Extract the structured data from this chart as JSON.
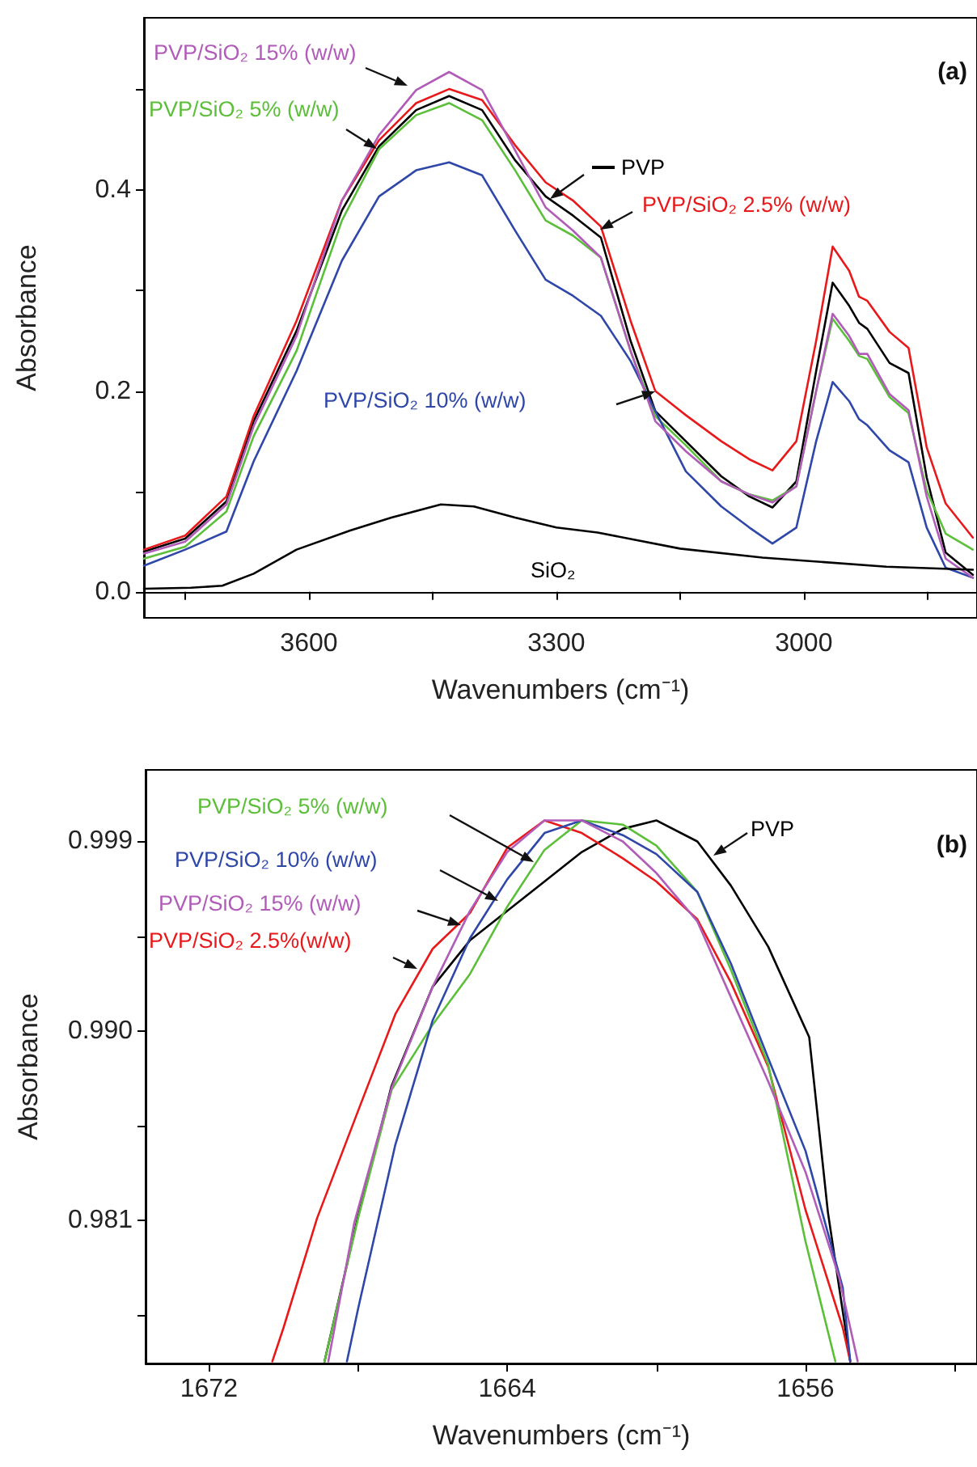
{
  "chart_data": [
    {
      "type": "line",
      "xlabel": "Wavenumbers (cm⁻¹)",
      "ylabel": "Absorbance",
      "annotations": [
        "(a)"
      ],
      "xlim": [
        3800,
        2790
      ],
      "ylim": [
        -0.026,
        0.572
      ],
      "xticks": [
        {
          "value": 3750,
          "label": null
        },
        3600,
        {
          "value": 3450,
          "label": null
        },
        3300,
        {
          "value": 3150,
          "label": null
        },
        3000,
        {
          "value": 2850,
          "label": null
        }
      ],
      "yticks": [
        {
          "value": 0,
          "label": "0.0"
        },
        {
          "value": 0.1,
          "label": null
        },
        0.2,
        {
          "value": 0.3,
          "label": null
        },
        0.4,
        {
          "value": 0.5,
          "label": null
        }
      ],
      "x": [
        3800,
        3750,
        3700,
        3667,
        3615,
        3560,
        3515,
        3470,
        3430,
        3390,
        3350,
        3313,
        3280,
        3246,
        3210,
        3180,
        3143,
        3100,
        3066,
        3038,
        3009,
        2985,
        2965,
        2945,
        2933,
        2923,
        2896,
        2873,
        2851,
        2828,
        2795
      ],
      "series": [
        {
          "name": "PVP",
          "color": "#000000",
          "values": [
            0.04,
            0.053,
            0.09,
            0.17,
            0.26,
            0.38,
            0.444,
            0.48,
            0.494,
            0.48,
            0.43,
            0.394,
            0.375,
            0.353,
            0.25,
            0.18,
            0.15,
            0.115,
            0.095,
            0.084,
            0.11,
            0.22,
            0.308,
            0.285,
            0.268,
            0.262,
            0.228,
            0.218,
            0.114,
            0.039,
            0.017
          ]
        },
        {
          "name": "PVP/SiO₂ 2.5% (w/w)",
          "color": "#e8191b",
          "values": [
            0.042,
            0.056,
            0.095,
            0.175,
            0.27,
            0.39,
            0.45,
            0.487,
            0.501,
            0.49,
            0.445,
            0.408,
            0.39,
            0.364,
            0.27,
            0.2,
            0.176,
            0.15,
            0.132,
            0.121,
            0.15,
            0.25,
            0.344,
            0.32,
            0.294,
            0.29,
            0.259,
            0.243,
            0.144,
            0.088,
            0.054
          ]
        },
        {
          "name": "PVP/SiO₂ 5% (w/w)",
          "color": "#5cbf3a",
          "values": [
            0.033,
            0.045,
            0.08,
            0.155,
            0.24,
            0.37,
            0.441,
            0.475,
            0.487,
            0.47,
            0.42,
            0.37,
            0.355,
            0.333,
            0.24,
            0.175,
            0.146,
            0.11,
            0.097,
            0.091,
            0.105,
            0.2,
            0.272,
            0.25,
            0.235,
            0.232,
            0.194,
            0.178,
            0.101,
            0.058,
            0.042
          ]
        },
        {
          "name": "PVP/SiO₂ 10% (w/w)",
          "color": "#2e47a8",
          "values": [
            0.026,
            0.042,
            0.06,
            0.13,
            0.22,
            0.33,
            0.394,
            0.42,
            0.428,
            0.415,
            0.36,
            0.311,
            0.295,
            0.275,
            0.23,
            0.18,
            0.12,
            0.085,
            0.064,
            0.048,
            0.064,
            0.15,
            0.209,
            0.19,
            0.172,
            0.166,
            0.141,
            0.129,
            0.064,
            0.024,
            0.014
          ]
        },
        {
          "name": "PVP/SiO₂ 15% (w/w)",
          "color": "#b05cb8",
          "values": [
            0.038,
            0.05,
            0.087,
            0.165,
            0.255,
            0.39,
            0.455,
            0.5,
            0.518,
            0.5,
            0.44,
            0.383,
            0.36,
            0.333,
            0.24,
            0.17,
            0.14,
            0.11,
            0.097,
            0.089,
            0.105,
            0.2,
            0.277,
            0.255,
            0.237,
            0.237,
            0.197,
            0.181,
            0.095,
            0.033,
            0.014
          ]
        },
        {
          "name": "SiO₂",
          "color": "#000000",
          "x": [
            3800,
            3743,
            3705,
            3667,
            3615,
            3550,
            3500,
            3440,
            3400,
            3350,
            3300,
            3250,
            3150,
            3050,
            3000,
            2900,
            2795
          ],
          "values": [
            0.003,
            0.004,
            0.006,
            0.018,
            0.042,
            0.061,
            0.074,
            0.087,
            0.085,
            0.074,
            0.064,
            0.059,
            0.043,
            0.034,
            0.031,
            0.025,
            0.022
          ]
        }
      ]
    },
    {
      "type": "line",
      "xlabel": "Wavenumbers (cm⁻¹)",
      "ylabel": "Absorbance",
      "annotations": [
        "(b)"
      ],
      "xlim": [
        1673.7,
        1651.4
      ],
      "ylim": [
        0.9742,
        1.0024
      ],
      "xticks": [
        1672,
        {
          "value": 1668,
          "label": null
        },
        1664,
        {
          "value": 1660,
          "label": null
        },
        1656,
        {
          "value": 1652,
          "label": null
        }
      ],
      "yticks": [
        {
          "value": 0.9765,
          "label": null
        },
        0.981,
        {
          "value": 0.9855,
          "label": null
        },
        {
          "value": 0.99,
          "label": "0.990"
        },
        {
          "value": 0.9945,
          "label": null
        },
        0.999
      ],
      "series": [
        {
          "name": "PVP",
          "color": "#000000",
          "x": [
            1668.9,
            1668.0,
            1667.1,
            1666.0,
            1665.0,
            1663.0,
            1662.0,
            1660.9,
            1660.0,
            1658.9,
            1658.0,
            1657.0,
            1655.9,
            1655.4,
            1654.8
          ],
          "values": [
            0.9743,
            0.9812,
            0.9874,
            0.9921,
            0.9943,
            0.9971,
            0.9985,
            0.9996,
            1.0,
            0.999,
            0.9969,
            0.994,
            0.9897,
            0.9814,
            0.9743
          ]
        },
        {
          "name": "PVP/SiO₂ 2.5%(w/w)",
          "color": "#e8191b",
          "x": [
            1670.3,
            1670.0,
            1669.1,
            1668.0,
            1667.0,
            1666.0,
            1665.0,
            1664.0,
            1663.0,
            1662.0,
            1660.9,
            1660.0,
            1658.9,
            1658.0,
            1657.0,
            1656.0,
            1655.0,
            1654.8
          ],
          "values": [
            0.9743,
            0.9759,
            0.9811,
            0.9862,
            0.9908,
            0.9939,
            0.9956,
            0.9987,
            1.0,
            0.9994,
            0.9982,
            0.9971,
            0.9953,
            0.9923,
            0.9883,
            0.9815,
            0.9759,
            0.9743
          ]
        },
        {
          "name": "PVP/SiO₂ 5% (w/w)",
          "color": "#5cbf3a",
          "x": [
            1668.9,
            1668.0,
            1667.1,
            1666.0,
            1665.0,
            1664.0,
            1663.0,
            1662.0,
            1660.9,
            1660.0,
            1658.9,
            1658.0,
            1657.0,
            1656.0,
            1655.2
          ],
          "values": [
            0.9743,
            0.9811,
            0.9872,
            0.9903,
            0.9927,
            0.9959,
            0.9986,
            1.0,
            0.9998,
            0.9988,
            0.9966,
            0.9929,
            0.9884,
            0.98,
            0.9743
          ]
        },
        {
          "name": "PVP/SiO₂ 10% (w/w)",
          "color": "#2e47a8",
          "x": [
            1668.3,
            1668.0,
            1667.0,
            1666.0,
            1665.0,
            1664.0,
            1663.0,
            1662.0,
            1660.9,
            1660.0,
            1658.9,
            1658.0,
            1657.0,
            1656.0,
            1655.0,
            1654.8
          ],
          "values": [
            0.9743,
            0.9768,
            0.9846,
            0.9905,
            0.9944,
            0.9972,
            0.9994,
            1.0,
            0.9993,
            0.9984,
            0.9966,
            0.9932,
            0.9887,
            0.9843,
            0.9778,
            0.9743
          ]
        },
        {
          "name": "PVP/SiO₂ 15% (w/w)",
          "color": "#b05cb8",
          "x": [
            1668.8,
            1668.1,
            1667.1,
            1666.0,
            1665.0,
            1664.0,
            1663.0,
            1662.0,
            1660.9,
            1660.0,
            1658.9,
            1658.0,
            1657.0,
            1656.0,
            1655.1,
            1654.6
          ],
          "values": [
            0.9743,
            0.9809,
            0.9873,
            0.9921,
            0.9957,
            0.9985,
            1.0,
            1.0,
            0.999,
            0.9975,
            0.9952,
            0.9916,
            0.9876,
            0.9833,
            0.9783,
            0.9743
          ]
        }
      ]
    }
  ]
}
